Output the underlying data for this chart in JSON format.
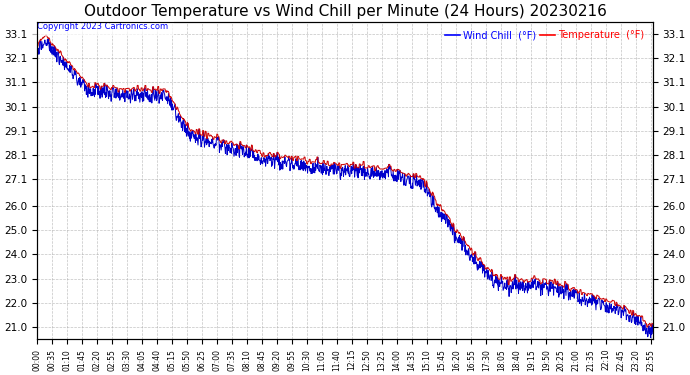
{
  "title": "Outdoor Temperature vs Wind Chill per Minute (24 Hours) 20230216",
  "copyright_text": "Copyright 2023 Cartronics.com",
  "legend_wind_chill": "Wind Chill  (°F)",
  "legend_temperature": "Temperature  (°F)",
  "background_color": "#ffffff",
  "plot_bg_color": "#ffffff",
  "grid_color": "#aaaaaa",
  "line_color_temp": "#cc0000",
  "line_color_wind": "#0000cc",
  "title_fontsize": 11,
  "ylabel_right": "Temperature (°F)",
  "ylim": [
    20.5,
    33.6
  ],
  "yticks": [
    21.0,
    22.0,
    23.0,
    24.0,
    25.0,
    26.0,
    27.1,
    28.1,
    29.1,
    30.1,
    31.1,
    32.1,
    33.1
  ],
  "num_minutes": 1440,
  "seed": 42
}
